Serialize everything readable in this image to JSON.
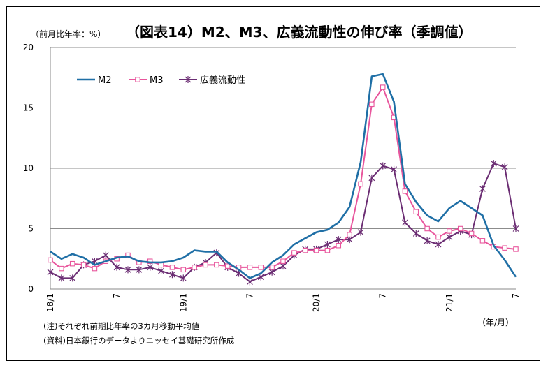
{
  "chart_data": {
    "type": "line",
    "title": "（図表14）M2、M3、広義流動性の伸び率（季調値）",
    "ylabel": "（前月比年率：%）",
    "xlabel": "（年/月）",
    "ylim": [
      0,
      20
    ],
    "yticks": [
      "0",
      "5",
      "10",
      "15",
      "20"
    ],
    "xticks": [
      {
        "index": 0,
        "label": "18/1"
      },
      {
        "index": 6,
        "label": "7"
      },
      {
        "index": 12,
        "label": "19/1"
      },
      {
        "index": 18,
        "label": "7"
      },
      {
        "index": 24,
        "label": "20/1"
      },
      {
        "index": 30,
        "label": "7"
      },
      {
        "index": 36,
        "label": "21/1"
      },
      {
        "index": 42,
        "label": "7"
      }
    ],
    "grid": true,
    "legend_position": "top-left",
    "series": [
      {
        "name": "M2",
        "color": "#1f6fa6",
        "marker": "none",
        "values": [
          3.1,
          2.5,
          2.9,
          2.6,
          2.0,
          2.3,
          2.6,
          2.7,
          2.3,
          2.2,
          2.2,
          2.3,
          2.6,
          3.2,
          3.1,
          3.1,
          2.2,
          1.6,
          0.9,
          1.3,
          2.2,
          2.8,
          3.7,
          4.2,
          4.7,
          4.9,
          5.5,
          6.8,
          10.5,
          17.6,
          17.8,
          15.5,
          8.7,
          7.2,
          6.1,
          5.6,
          6.7,
          7.3,
          6.7,
          6.1,
          3.6,
          2.4,
          1.0
        ]
      },
      {
        "name": "M3",
        "color": "#e8559c",
        "marker": "square",
        "values": [
          2.4,
          1.7,
          2.1,
          2.0,
          1.7,
          2.3,
          2.5,
          2.8,
          2.2,
          2.3,
          2.0,
          1.8,
          1.6,
          1.8,
          2.0,
          2.0,
          1.9,
          1.8,
          1.8,
          1.8,
          1.8,
          2.3,
          3.0,
          3.2,
          3.2,
          3.2,
          3.6,
          4.5,
          8.7,
          15.3,
          16.7,
          14.2,
          8.1,
          6.4,
          5.0,
          4.3,
          4.8,
          5.0,
          4.6,
          4.0,
          3.5,
          3.4,
          3.3
        ]
      },
      {
        "name": "広義流動性",
        "color": "#6b2d73",
        "marker": "star",
        "values": [
          1.4,
          0.9,
          0.9,
          2.0,
          2.3,
          2.8,
          1.8,
          1.6,
          1.6,
          1.8,
          1.5,
          1.2,
          0.9,
          1.8,
          2.2,
          3.0,
          1.8,
          1.3,
          0.6,
          1.0,
          1.4,
          1.9,
          2.8,
          3.3,
          3.3,
          3.7,
          4.1,
          4.1,
          4.7,
          9.2,
          10.2,
          9.9,
          5.5,
          4.6,
          4.0,
          3.7,
          4.3,
          4.8,
          4.5,
          8.3,
          10.4,
          10.1,
          5.0
        ]
      }
    ],
    "notes": [
      "(注)それぞれ前期比年率の3カ月移動平均値",
      "(資料)日本銀行のデータよりニッセイ基礎研究所作成"
    ]
  }
}
